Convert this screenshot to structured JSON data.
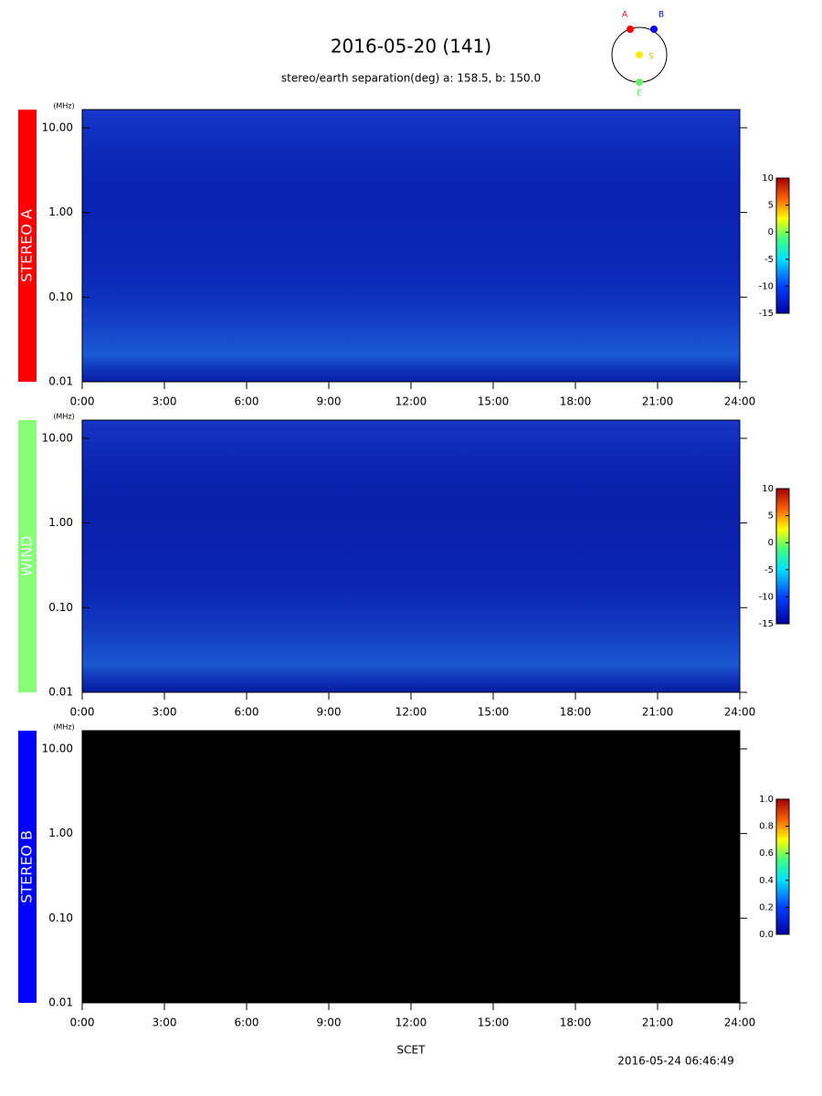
{
  "title": "2016-05-20 (141)",
  "subtitle": "stereo/earth separation(deg) a: 158.5, b: 150.0",
  "orbit_labels": [
    "A",
    "B",
    "S",
    "E"
  ],
  "x_label": "SCET",
  "timestamp": "2016-05-24 06:46:49",
  "chart_data": [
    {
      "type": "spectrogram",
      "label": "STEREO A",
      "label_color": "#ff0000",
      "y_unit": "(MHz)",
      "log_scale": true,
      "background": "#0a22b0",
      "xlim": [
        0,
        24
      ],
      "xticks": [
        {
          "value": 0,
          "label": "0:00"
        },
        {
          "value": 3,
          "label": "3:00"
        },
        {
          "value": 6,
          "label": "6:00"
        },
        {
          "value": 9,
          "label": "9:00"
        },
        {
          "value": 12,
          "label": "12:00"
        },
        {
          "value": 15,
          "label": "15:00"
        },
        {
          "value": 18,
          "label": "18:00"
        },
        {
          "value": 21,
          "label": "21:00"
        },
        {
          "value": 24,
          "label": "24:00"
        }
      ],
      "ylim": [
        0.01,
        16.4
      ],
      "yticks": [
        0.01,
        {
          "value": 0.1,
          "label": "0.10"
        },
        {
          "value": 1,
          "label": "1.00"
        },
        {
          "value": 10,
          "label": "10.00"
        }
      ],
      "clim": [
        -15,
        10
      ],
      "cticks": [
        -15,
        -10,
        -5,
        0,
        5,
        10
      ]
    },
    {
      "type": "spectrogram",
      "label": "WIND",
      "label_color": "#88ff77",
      "y_unit": "(MHz)",
      "log_scale": true,
      "background": "#0a1ea8",
      "xlim": [
        0,
        24
      ],
      "xticks": [
        {
          "value": 0,
          "label": "0:00"
        },
        {
          "value": 3,
          "label": "3:00"
        },
        {
          "value": 6,
          "label": "6:00"
        },
        {
          "value": 9,
          "label": "9:00"
        },
        {
          "value": 12,
          "label": "12:00"
        },
        {
          "value": 15,
          "label": "15:00"
        },
        {
          "value": 18,
          "label": "18:00"
        },
        {
          "value": 21,
          "label": "21:00"
        },
        {
          "value": 24,
          "label": "24:00"
        }
      ],
      "ylim": [
        0.01,
        16.4
      ],
      "yticks": [
        0.01,
        {
          "value": 0.1,
          "label": "0.10"
        },
        {
          "value": 1,
          "label": "1.00"
        },
        {
          "value": 10,
          "label": "10.00"
        }
      ],
      "clim": [
        -15,
        10
      ],
      "cticks": [
        -15,
        -10,
        -5,
        0,
        5,
        10
      ]
    },
    {
      "type": "spectrogram",
      "label": "STEREO B",
      "label_color": "#0000ff",
      "y_unit": "(MHz)",
      "log_scale": true,
      "background": "#000000",
      "xlim": [
        0,
        24
      ],
      "xticks": [
        {
          "value": 0,
          "label": "0:00"
        },
        {
          "value": 3,
          "label": "3:00"
        },
        {
          "value": 6,
          "label": "6:00"
        },
        {
          "value": 9,
          "label": "9:00"
        },
        {
          "value": 12,
          "label": "12:00"
        },
        {
          "value": 15,
          "label": "15:00"
        },
        {
          "value": 18,
          "label": "18:00"
        },
        {
          "value": 21,
          "label": "21:00"
        },
        {
          "value": 24,
          "label": "24:00"
        }
      ],
      "ylim": [
        0.01,
        16.4
      ],
      "yticks": [
        0.01,
        {
          "value": 0.1,
          "label": "0.10"
        },
        {
          "value": 1,
          "label": "1.00"
        },
        {
          "value": 10,
          "label": "10.00"
        }
      ],
      "clim": [
        0,
        1
      ],
      "cticks": [
        {
          "value": 0,
          "label": "0.0"
        },
        0.2,
        0.4,
        0.6,
        0.8,
        {
          "value": 1,
          "label": "1.0"
        }
      ]
    }
  ]
}
